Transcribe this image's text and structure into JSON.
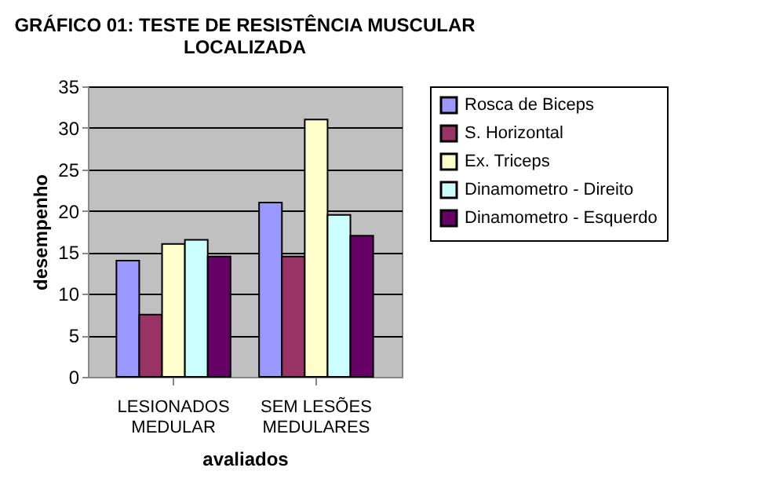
{
  "chart_data": {
    "type": "bar",
    "title": "GRÁFICO 01: TESTE DE RESISTÊNCIA MUSCULAR LOCALIZADA",
    "xlabel": "avaliados",
    "ylabel": "desempenho",
    "categories": [
      "LESIONADOS MEDULAR",
      "SEM LESÕES MEDULARES"
    ],
    "series": [
      {
        "name": "Rosca de Biceps",
        "color": "#9999ff",
        "values": [
          14,
          21
        ]
      },
      {
        "name": "S. Horizontal",
        "color": "#993366",
        "values": [
          7.5,
          14.5
        ]
      },
      {
        "name": "Ex. Triceps",
        "color": "#ffffcc",
        "values": [
          16,
          31
        ]
      },
      {
        "name": "Dinamometro - Direito",
        "color": "#ccffff",
        "values": [
          16.5,
          19.5
        ]
      },
      {
        "name": "Dinamometro - Esquerdo",
        "color": "#660066",
        "values": [
          14.5,
          17
        ]
      }
    ],
    "ylim": [
      0,
      35
    ],
    "yticks": [
      0,
      5,
      10,
      15,
      20,
      25,
      30,
      35
    ],
    "grid": "y",
    "legend": "right"
  }
}
